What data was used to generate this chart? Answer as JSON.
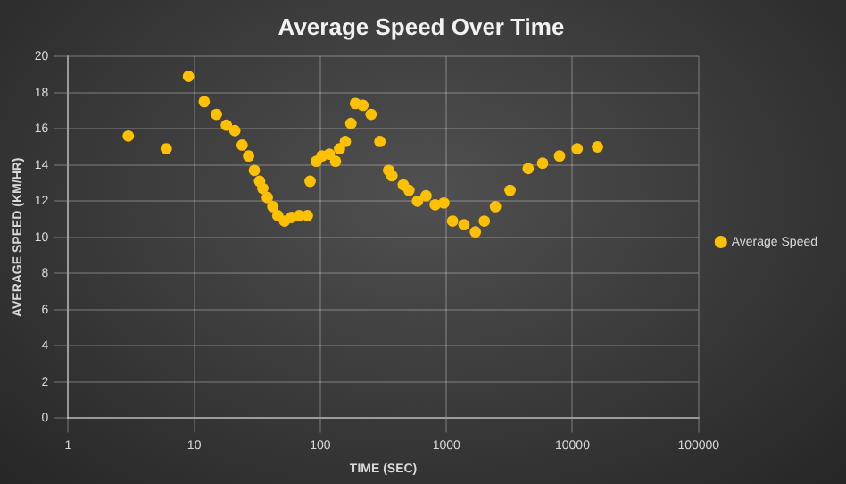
{
  "chart_data": {
    "type": "scatter",
    "title": "Average Speed Over Time",
    "xlabel": "TIME (SEC)",
    "ylabel": "AVERAGE SPEED (KM/HR)",
    "log": "x",
    "xlim": [
      1,
      100000
    ],
    "xticks": [
      1,
      10,
      100,
      1000,
      10000,
      100000
    ],
    "ylim": [
      0,
      20
    ],
    "yticks": [
      0,
      2,
      4,
      6,
      8,
      10,
      12,
      14,
      16,
      18,
      20
    ],
    "grid": true,
    "legend": "right",
    "marker": "circle",
    "series": [
      {
        "name": "Average Speed",
        "color": "#ffc000",
        "x": [
          3,
          6,
          9,
          12,
          15,
          18,
          21,
          24,
          27,
          30,
          33,
          35,
          38,
          42,
          46,
          52,
          59,
          68,
          79,
          83,
          93,
          103,
          118,
          132,
          142,
          158,
          175,
          190,
          218,
          253,
          297,
          348,
          370,
          455,
          505,
          590,
          690,
          815,
          955,
          1120,
          1380,
          1700,
          2000,
          2450,
          3200,
          4450,
          5800,
          7900,
          10900,
          15800
        ],
        "values": [
          15.6,
          14.9,
          18.9,
          17.5,
          16.8,
          16.2,
          15.9,
          15.1,
          14.5,
          13.7,
          13.1,
          12.7,
          12.2,
          11.7,
          11.2,
          10.9,
          11.1,
          11.2,
          11.2,
          13.1,
          14.2,
          14.5,
          14.6,
          14.2,
          14.9,
          15.3,
          16.3,
          17.4,
          17.3,
          16.8,
          15.3,
          13.7,
          13.4,
          12.9,
          12.6,
          12.0,
          12.3,
          11.8,
          11.9,
          10.9,
          10.7,
          10.3,
          10.9,
          11.7,
          12.6,
          13.8,
          14.1,
          14.5,
          14.9,
          15.0
        ]
      }
    ]
  }
}
